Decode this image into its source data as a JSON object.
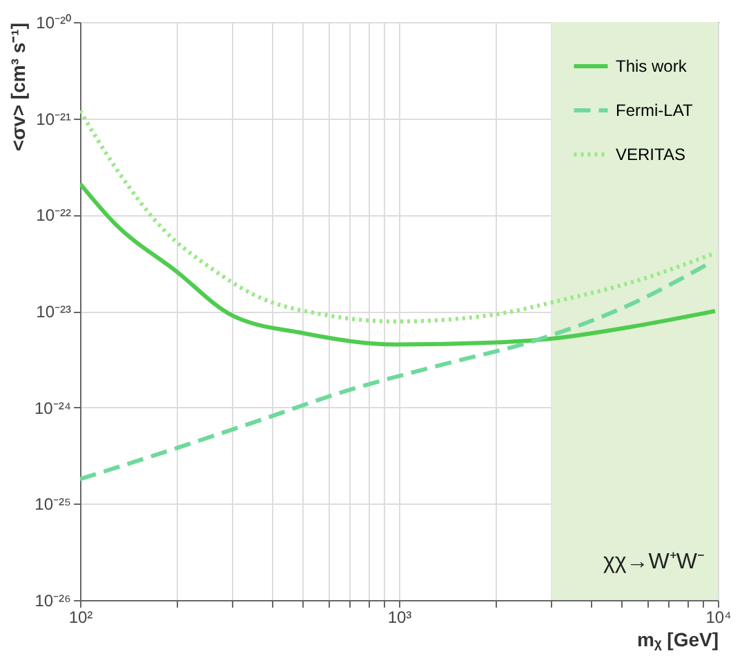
{
  "chart_data": {
    "type": "line",
    "log": "xy",
    "xlabel": "mᵪ [GeV]",
    "ylabel": "<σv> [cm³ s⁻¹]",
    "series": [
      {
        "name": "This work",
        "color": "#4fcc4f",
        "line_style": "solid",
        "x": [
          100,
          129,
          200,
          300,
          500,
          980,
          1950,
          2900,
          5400,
          9800
        ],
        "values": [
          2.1e-22,
          8e-23,
          2.6e-23,
          9e-24,
          5.9e-24,
          4.5e-24,
          4.7e-24,
          5.1e-24,
          6.9e-24,
          1e-23
        ]
      },
      {
        "name": "Fermi-LAT",
        "color": "#6fd99b",
        "line_style": "dashed",
        "x": [
          100,
          182,
          355,
          690,
          1380,
          2700,
          5400,
          9500
        ],
        "values": [
          1.8e-25,
          3.4e-25,
          7.1e-25,
          1.5e-24,
          2.8e-24,
          5e-24,
          1.2e-23,
          3.2e-23
        ]
      },
      {
        "name": "VERITAS",
        "color": "#9be889",
        "line_style": "dotted",
        "x": [
          100,
          129,
          182,
          257,
          355,
          590,
          980,
          1950,
          3240,
          5400,
          9800
        ],
        "values": [
          1.2e-21,
          3.1e-22,
          7.1e-23,
          2.8e-23,
          1.45e-23,
          9.1e-24,
          7.8e-24,
          9.1e-24,
          1.3e-23,
          2e-23,
          4e-23
        ]
      }
    ],
    "xlim": [
      100,
      10000
    ],
    "xticks": [
      {
        "value": 100,
        "label": "10²"
      },
      {
        "value": 200,
        "label": null
      },
      {
        "value": 300,
        "label": null
      },
      {
        "value": 400,
        "label": null
      },
      {
        "value": 500,
        "label": null
      },
      {
        "value": 600,
        "label": null
      },
      {
        "value": 700,
        "label": null
      },
      {
        "value": 800,
        "label": null
      },
      {
        "value": 900,
        "label": null
      },
      {
        "value": 1000,
        "label": "10³"
      },
      {
        "value": 2000,
        "label": null
      },
      {
        "value": 3000,
        "label": null
      },
      {
        "value": 4000,
        "label": null
      },
      {
        "value": 5000,
        "label": null
      },
      {
        "value": 6000,
        "label": null
      },
      {
        "value": 7000,
        "label": null
      },
      {
        "value": 8000,
        "label": null
      },
      {
        "value": 9000,
        "label": null
      },
      {
        "value": 10000,
        "label": "10⁴"
      }
    ],
    "ylim": [
      1e-26,
      1e-20
    ],
    "yticks": [
      {
        "value": 1e-26,
        "label": "10⁻²⁶"
      },
      {
        "value": 1e-25,
        "label": "10⁻²⁵"
      },
      {
        "value": 1e-24,
        "label": "10⁻²⁴"
      },
      {
        "value": 1e-23,
        "label": "10⁻²³"
      },
      {
        "value": 1e-22,
        "label": "10⁻²²"
      },
      {
        "value": 1e-21,
        "label": "10⁻²¹"
      },
      {
        "value": 1e-20,
        "label": "10⁻²⁰"
      }
    ],
    "bands": [
      {
        "axis": "x",
        "from": 3000,
        "to": 10000,
        "color": "#e2f0d6"
      }
    ],
    "annotations": [
      "χχ→W⁺W⁻"
    ],
    "grid": true,
    "legend": "top right"
  }
}
